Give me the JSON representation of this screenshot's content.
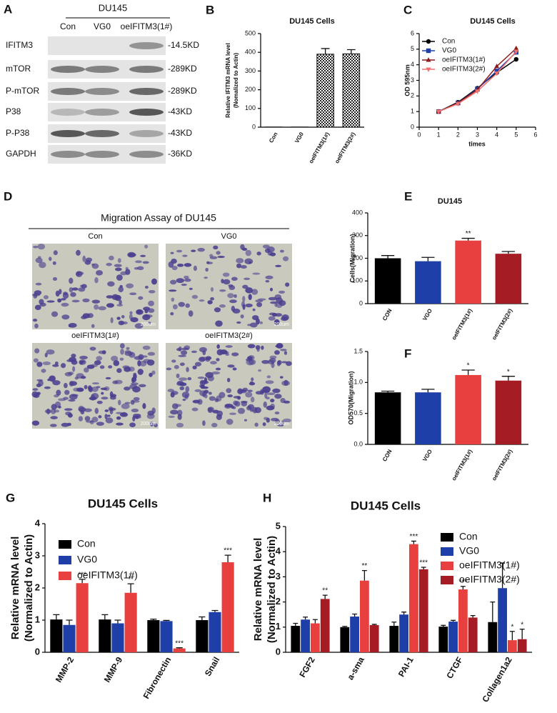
{
  "blot": {
    "panel": "A",
    "title": "DU145",
    "lanes": [
      "Con",
      "VG0",
      "oeIFITM3(1#)"
    ],
    "rows": [
      {
        "protein": "IFITM3",
        "size": "-14.5KD"
      },
      {
        "protein": "mTOR",
        "size": "-289KD"
      },
      {
        "protein": "P-mTOR",
        "size": "-289KD"
      },
      {
        "protein": "P38",
        "size": "-43KD"
      },
      {
        "protein": "P-P38",
        "size": "-43KD"
      },
      {
        "protein": "GAPDH",
        "size": "-36KD"
      }
    ]
  },
  "migration": {
    "panel": "D",
    "title": "Migration Assay of DU145",
    "images": [
      {
        "label": "Con",
        "scale": "200um"
      },
      {
        "label": "VG0",
        "scale": "200um"
      },
      {
        "label": "oeIFITM3(1#)",
        "scale": "200um"
      },
      {
        "label": "oeIFITM3(2#)",
        "scale": "200um"
      }
    ]
  },
  "chart_data": [
    {
      "type": "bar",
      "panel": "B",
      "title": "DU145 Cells",
      "ylabel": [
        "Relative IFITM3 mRNA level",
        "(Nomalized to Actin)"
      ],
      "categories": [
        "Con",
        "VG0",
        "oeIFITM3(1#)",
        "oeIFITM3(2#)"
      ],
      "values": [
        1,
        1,
        390,
        392
      ],
      "errors": [
        0,
        0,
        30,
        22
      ],
      "colors": [
        "#111111",
        "#111111",
        "#111111",
        "#111111"
      ],
      "hatch": true,
      "ylim": [
        0,
        500
      ],
      "yticks": [
        0,
        100,
        200,
        300,
        400,
        500
      ]
    },
    {
      "type": "line",
      "panel": "C",
      "title": "DU145 Cells",
      "ylabel": [
        "OD 595nm"
      ],
      "xlabel": "times",
      "x": [
        1,
        2,
        3,
        4,
        5
      ],
      "xlim": [
        0,
        6
      ],
      "xticks": [
        0,
        1,
        2,
        3,
        4,
        5,
        6
      ],
      "ylim": [
        0,
        6
      ],
      "yticks": [
        0,
        1,
        2,
        3,
        4,
        5,
        6
      ],
      "series": [
        {
          "name": "Con",
          "color": "#000000",
          "marker": "circle",
          "values": [
            1,
            1.6,
            2.5,
            3.5,
            4.35
          ]
        },
        {
          "name": "VG0",
          "color": "#1f3fa8",
          "marker": "square",
          "values": [
            1,
            1.55,
            2.45,
            3.6,
            4.8
          ]
        },
        {
          "name": "oeIFITM3(1#)",
          "color": "#8b1a1a",
          "marker": "triangle",
          "values": [
            1,
            1.55,
            2.4,
            3.9,
            5.05
          ]
        },
        {
          "name": "oeIFITM3(2#)",
          "color": "#f07070",
          "marker": "triangle-down",
          "values": [
            1,
            1.5,
            2.3,
            3.45,
            4.85
          ]
        }
      ]
    },
    {
      "type": "bar",
      "panel": "E",
      "title": "DU145",
      "ylabel": [
        "Cells(Migration)"
      ],
      "categories": [
        "CON",
        "VGO",
        "oeIFITM3(1#)",
        "oeIFITM3(2#)"
      ],
      "values": [
        200,
        187,
        278,
        220
      ],
      "errors": [
        12,
        17,
        10,
        10
      ],
      "colors": [
        "#000000",
        "#1f3fa8",
        "#e8403f",
        "#a61c24"
      ],
      "annotations": [
        null,
        null,
        "**",
        null
      ],
      "ylim": [
        0,
        400
      ],
      "yticks": [
        0,
        100,
        200,
        300,
        400
      ]
    },
    {
      "type": "bar",
      "panel": "F",
      "ylabel": [
        "OD570(Migration)"
      ],
      "categories": [
        "CON",
        "VGO",
        "oeIFITM3(1#)",
        "oeIFITM3(2#)"
      ],
      "values": [
        0.84,
        0.84,
        1.12,
        1.03
      ],
      "errors": [
        0.02,
        0.05,
        0.08,
        0.07
      ],
      "colors": [
        "#000000",
        "#1f3fa8",
        "#e8403f",
        "#a61c24"
      ],
      "annotations": [
        null,
        null,
        "*",
        "*"
      ],
      "ylim": [
        0,
        1.5
      ],
      "yticks": [
        {
          "value": 0,
          "label": "0.0"
        },
        0.5,
        {
          "value": 1,
          "label": "1.0"
        },
        1.5
      ]
    },
    {
      "type": "bar",
      "panel": "G",
      "title": "DU145 Cells",
      "ylabel": [
        "Relative mRNA level",
        "(Normalized to Actin)"
      ],
      "categories": [
        "MMP-2",
        "MMP-9",
        "Fibronectin",
        "Snail"
      ],
      "ylim": [
        0,
        4
      ],
      "yticks": [
        0,
        1,
        2,
        3,
        4
      ],
      "series": [
        {
          "name": "Con",
          "color": "#000000",
          "values": [
            1.02,
            1.02,
            1.0,
            1.0
          ],
          "errors": [
            0.15,
            0.15,
            0.03,
            0.1
          ]
        },
        {
          "name": "VG0",
          "color": "#1f3fa8",
          "values": [
            0.85,
            0.9,
            0.97,
            1.25
          ],
          "errors": [
            0.15,
            0.1,
            0.02,
            0.05
          ]
        },
        {
          "name": "oeIFITM3(1#)",
          "color": "#e8403f",
          "values": [
            2.15,
            1.85,
            0.12,
            2.8
          ],
          "errors": [
            0.12,
            0.28,
            0.02,
            0.22
          ],
          "annotations": [
            "***",
            "**",
            "***",
            "***"
          ]
        }
      ]
    },
    {
      "type": "bar",
      "panel": "H",
      "title": "DU145 Cells",
      "ylabel": [
        "Relative mRNA level",
        "(Normalized to Actin)"
      ],
      "categories": [
        "FGF2",
        "a-sma",
        "PAI-1",
        "CTGF",
        "Collagen1a2"
      ],
      "ylim": [
        0,
        5
      ],
      "yticks": [
        0,
        1,
        2,
        3,
        4,
        5
      ],
      "series": [
        {
          "name": "Con",
          "color": "#000000",
          "values": [
            1.05,
            1.0,
            1.05,
            1.02,
            1.2
          ],
          "errors": [
            0.1,
            0.03,
            0.15,
            0.05,
            0.8
          ]
        },
        {
          "name": "VG0",
          "color": "#1f3fa8",
          "values": [
            1.3,
            1.42,
            1.5,
            1.22,
            2.55
          ],
          "errors": [
            0.1,
            0.1,
            0.1,
            0.05,
            1.0
          ]
        },
        {
          "name": "oeIFITM3(1#)",
          "color": "#e8403f",
          "values": [
            1.15,
            2.85,
            4.3,
            2.5,
            0.48
          ],
          "errors": [
            0.15,
            0.4,
            0.12,
            0.12,
            0.35
          ],
          "annotations": [
            null,
            "**",
            "***",
            "***",
            "*"
          ]
        },
        {
          "name": "oeIFITM3(2#)",
          "color": "#a61c24",
          "values": [
            2.12,
            1.08,
            3.3,
            1.38,
            0.52
          ],
          "errors": [
            0.15,
            0.03,
            0.08,
            0.08,
            0.4
          ],
          "annotations": [
            "**",
            null,
            "***",
            null,
            "*"
          ]
        }
      ]
    }
  ]
}
